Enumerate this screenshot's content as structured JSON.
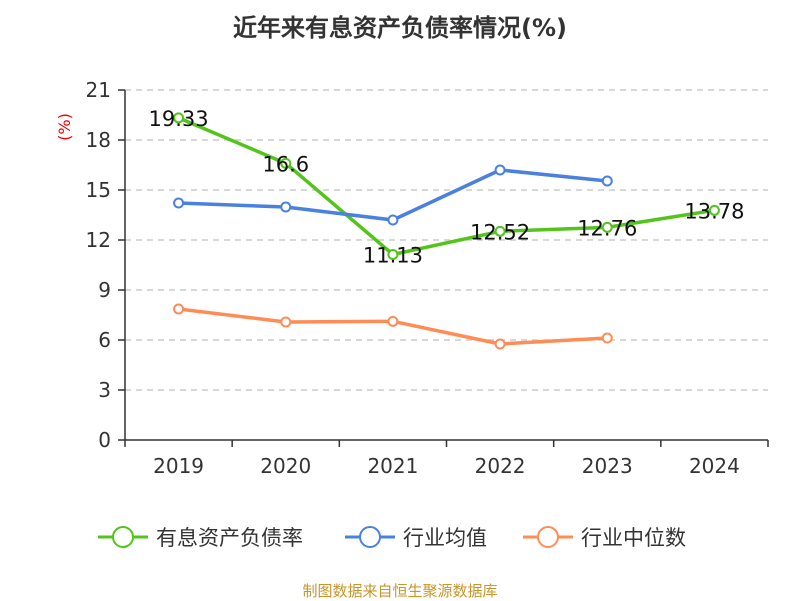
{
  "title": "近年来有息资产负债率情况(%)",
  "source": "制图数据来自恒生聚源数据库",
  "chart_data": {
    "type": "line",
    "title": "近年来有息资产负债率情况(%)",
    "ylabel": "(%)",
    "categories": [
      "2019",
      "2020",
      "2021",
      "2022",
      "2023",
      "2024"
    ],
    "ylim": [
      0,
      21
    ],
    "yticks": [
      0,
      3,
      6,
      9,
      12,
      15,
      18,
      21
    ],
    "grid": true,
    "legend_position": "bottom",
    "series": [
      {
        "name": "有息资产负债率",
        "color": "#52c41a",
        "values": [
          19.33,
          16.6,
          11.13,
          12.52,
          12.76,
          13.78
        ],
        "labels": [
          "19.33",
          "16.6",
          "11.13",
          "12.52",
          "12.76",
          "13.78"
        ]
      },
      {
        "name": "行业均值",
        "color": "#4a80e0",
        "values": [
          14.22,
          13.98,
          13.2,
          16.2,
          15.54,
          null
        ]
      },
      {
        "name": "行业中位数",
        "color": "#ff8c55",
        "values": [
          7.86,
          7.08,
          7.12,
          5.76,
          6.12,
          null
        ]
      }
    ]
  }
}
